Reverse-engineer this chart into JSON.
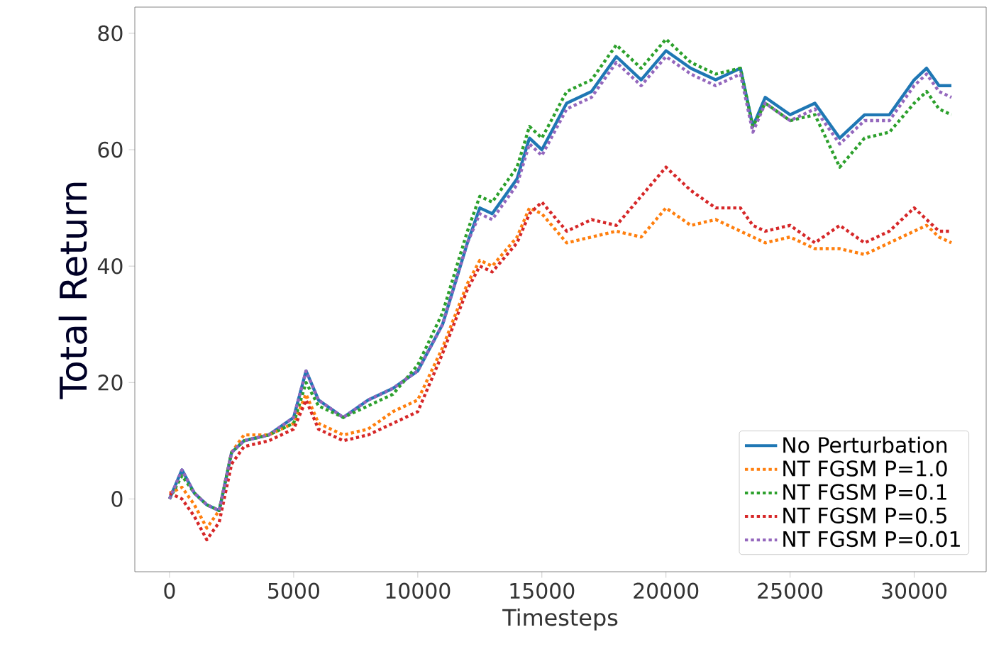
{
  "chart_data": {
    "type": "line",
    "xlabel": "Timesteps",
    "ylabel": "Total Return",
    "xlim": [
      -1400,
      32900
    ],
    "ylim": [
      -12.5,
      84.5
    ],
    "xticks": [
      0,
      5000,
      10000,
      15000,
      20000,
      25000,
      30000
    ],
    "yticks": [
      0,
      20,
      40,
      60,
      80
    ],
    "legend": "bottom right",
    "grid": false,
    "x": [
      0,
      500,
      1000,
      1500,
      2000,
      2500,
      3000,
      4000,
      5000,
      5500,
      6000,
      7000,
      8000,
      9000,
      10000,
      11000,
      12000,
      12500,
      13000,
      14000,
      14500,
      15000,
      16000,
      17000,
      18000,
      19000,
      20000,
      21000,
      22000,
      23000,
      23500,
      24000,
      25000,
      26000,
      27000,
      28000,
      29000,
      30000,
      30500,
      31000,
      31500
    ],
    "series": [
      {
        "name": "No Perturbation",
        "color": "#1f77b4",
        "line_style": "solid",
        "values": [
          0,
          5,
          1,
          -1,
          -2,
          8,
          10,
          11,
          14,
          22,
          17,
          14,
          17,
          19,
          22,
          30,
          44,
          50,
          49,
          55,
          62,
          60,
          68,
          70,
          76,
          72,
          77,
          74,
          72,
          74,
          64,
          69,
          66,
          68,
          62,
          66,
          66,
          72,
          74,
          71,
          71
        ]
      },
      {
        "name": "NT FGSM P=1.0",
        "color": "#ff7f0e",
        "line_style": "dotted",
        "values": [
          1,
          2,
          -1,
          -5,
          -2,
          8,
          11,
          11,
          13,
          18,
          13,
          11,
          12,
          15,
          17,
          26,
          37,
          41,
          40,
          45,
          50,
          49,
          44,
          45,
          46,
          45,
          50,
          47,
          48,
          46,
          45,
          44,
          45,
          43,
          43,
          42,
          44,
          46,
          47,
          45,
          44
        ]
      },
      {
        "name": "NT FGSM P=0.1",
        "color": "#2ca02c",
        "line_style": "dotted",
        "values": [
          0,
          4,
          1,
          -1,
          -2,
          8,
          10,
          11,
          13,
          20,
          16,
          14,
          16,
          18,
          23,
          32,
          46,
          52,
          51,
          57,
          64,
          62,
          70,
          72,
          78,
          74,
          79,
          75,
          73,
          74,
          64,
          68,
          65,
          66,
          57,
          62,
          63,
          68,
          70,
          67,
          66
        ]
      },
      {
        "name": "NT FGSM P=0.5",
        "color": "#d62728",
        "line_style": "dotted",
        "values": [
          1,
          0,
          -3,
          -7,
          -4,
          6,
          9,
          10,
          12,
          17,
          12,
          10,
          11,
          13,
          15,
          25,
          36,
          40,
          39,
          44,
          49,
          51,
          46,
          48,
          47,
          52,
          57,
          53,
          50,
          50,
          47,
          46,
          47,
          44,
          47,
          44,
          46,
          50,
          48,
          46,
          46
        ]
      },
      {
        "name": "NT FGSM P=0.01",
        "color": "#9467bd",
        "line_style": "dotted",
        "values": [
          0,
          5,
          1,
          -1,
          -2,
          8,
          10,
          11,
          14,
          22,
          17,
          14,
          17,
          19,
          22,
          30,
          44,
          49,
          48,
          54,
          61,
          59,
          67,
          69,
          75,
          71,
          76,
          73,
          71,
          73,
          63,
          68,
          65,
          67,
          61,
          65,
          65,
          71,
          73,
          70,
          69
        ]
      }
    ]
  }
}
